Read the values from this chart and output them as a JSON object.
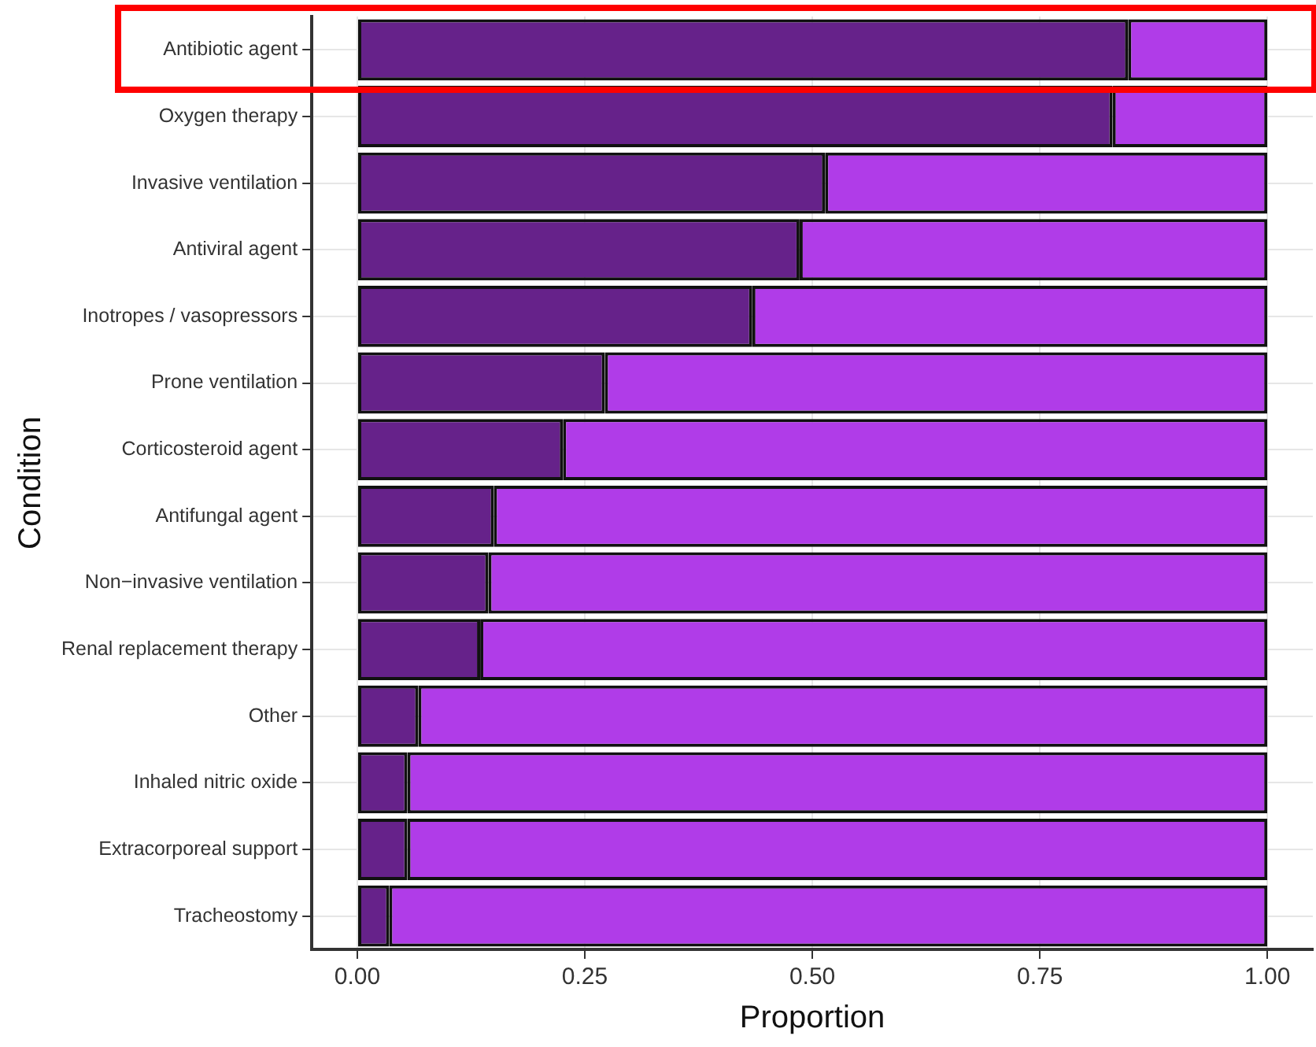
{
  "chart_data": {
    "type": "bar",
    "orientation": "horizontal",
    "stacked": true,
    "xlabel": "Proportion",
    "ylabel": "Condition",
    "categories": [
      "Antibiotic agent",
      "Oxygen therapy",
      "Invasive ventilation",
      "Antiviral agent",
      "Inotropes / vasopressors",
      "Prone ventilation",
      "Corticosteroid agent",
      "Antifungal agent",
      "Non−invasive ventilation",
      "Renal replacement therapy",
      "Other",
      "Inhaled nitric oxide",
      "Extracorporeal support",
      "Tracheostomy"
    ],
    "series": [
      {
        "color": "#66228a",
        "values": [
          0.847,
          0.83,
          0.514,
          0.486,
          0.434,
          0.272,
          0.226,
          0.15,
          0.144,
          0.135,
          0.067,
          0.055,
          0.055,
          0.035
        ]
      },
      {
        "color": "#b03ce8",
        "values": [
          0.153,
          0.17,
          0.486,
          0.514,
          0.566,
          0.728,
          0.774,
          0.85,
          0.856,
          0.865,
          0.933,
          0.945,
          0.945,
          0.965
        ]
      }
    ],
    "xlim": [
      -0.05,
      1.05
    ],
    "xticks": [
      {
        "value": 0,
        "label": "0.00"
      },
      {
        "value": 0.25,
        "label": "0.25"
      },
      {
        "value": 0.5,
        "label": "0.50"
      },
      {
        "value": 0.75,
        "label": "0.75"
      },
      {
        "value": 1,
        "label": "1.00"
      }
    ],
    "grid": true,
    "legend": false
  }
}
